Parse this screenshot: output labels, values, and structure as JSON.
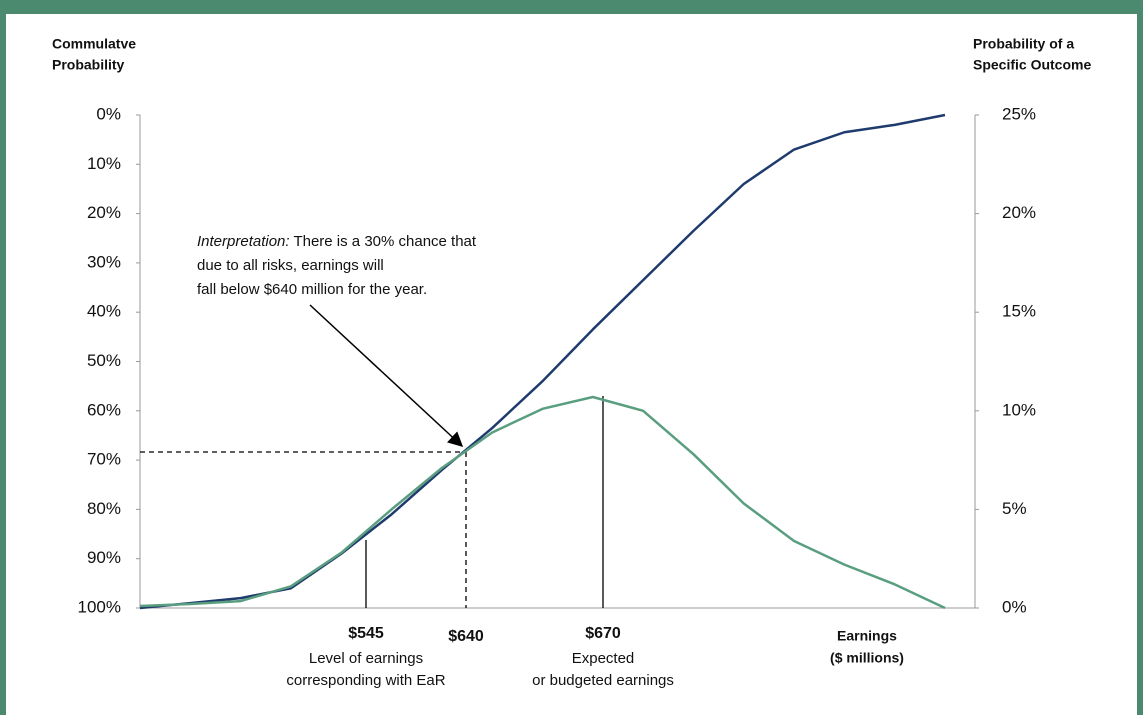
{
  "chart_data": {
    "type": "line",
    "y_label": [
      "Commulatve",
      "Probability"
    ],
    "y2_label": [
      "Probability of a",
      "Specific Outcome"
    ],
    "x_label": [
      "Earnings",
      "($ millions)"
    ],
    "categories": [
      null,
      null,
      null,
      null,
      null,
      null,
      null,
      null,
      null,
      null,
      null,
      null,
      null,
      null,
      null,
      null,
      null
    ],
    "ylim": [
      100,
      0
    ],
    "yticks": [
      {
        "value": 0,
        "label": "0%"
      },
      {
        "value": 10,
        "label": "10%"
      },
      {
        "value": 20,
        "label": "20%"
      },
      {
        "value": 30,
        "label": "30%"
      },
      {
        "value": 40,
        "label": "40%"
      },
      {
        "value": 50,
        "label": "50%"
      },
      {
        "value": 60,
        "label": "60%"
      },
      {
        "value": 70,
        "label": "70%"
      },
      {
        "value": 80,
        "label": "80%"
      },
      {
        "value": 90,
        "label": "90%"
      },
      {
        "value": 100,
        "label": "100%"
      }
    ],
    "y2lim": [
      0,
      25
    ],
    "y2ticks": [
      {
        "value": 0,
        "label": "0%"
      },
      {
        "value": 5,
        "label": "5%"
      },
      {
        "value": 10,
        "label": "10%"
      },
      {
        "value": 15,
        "label": "15%"
      },
      {
        "value": 20,
        "label": "20%"
      },
      {
        "value": 25,
        "label": "25%"
      }
    ],
    "series": [
      {
        "color": "#1f3b6e",
        "axis": "y",
        "values": [
          100,
          99,
          98,
          96,
          89,
          81,
          72,
          63.5,
          54,
          43.5,
          33.5,
          23.5,
          14,
          7,
          3.5,
          2,
          0
        ]
      },
      {
        "color": "#5a9e80",
        "axis": "y2",
        "values": [
          0.1,
          0.2,
          0.35,
          1.1,
          2.8,
          5,
          7.1,
          8.9,
          10.1,
          10.7,
          10,
          7.8,
          5.3,
          3.4,
          2.2,
          1.2,
          0
        ]
      }
    ],
    "annotations": {
      "interpretation": [
        "Interpretation:",
        " There is a 30% chance that",
        "due to all risks, earnings will",
        "fall below $640 million for the year."
      ],
      "markers": [
        {
          "label": "$545",
          "note": [
            "Level of earnings",
            "corresponding with EaR"
          ]
        },
        {
          "label": "$640"
        },
        {
          "label": "$670",
          "note": [
            "Expected",
            "or budgeted earnings"
          ]
        }
      ]
    }
  }
}
